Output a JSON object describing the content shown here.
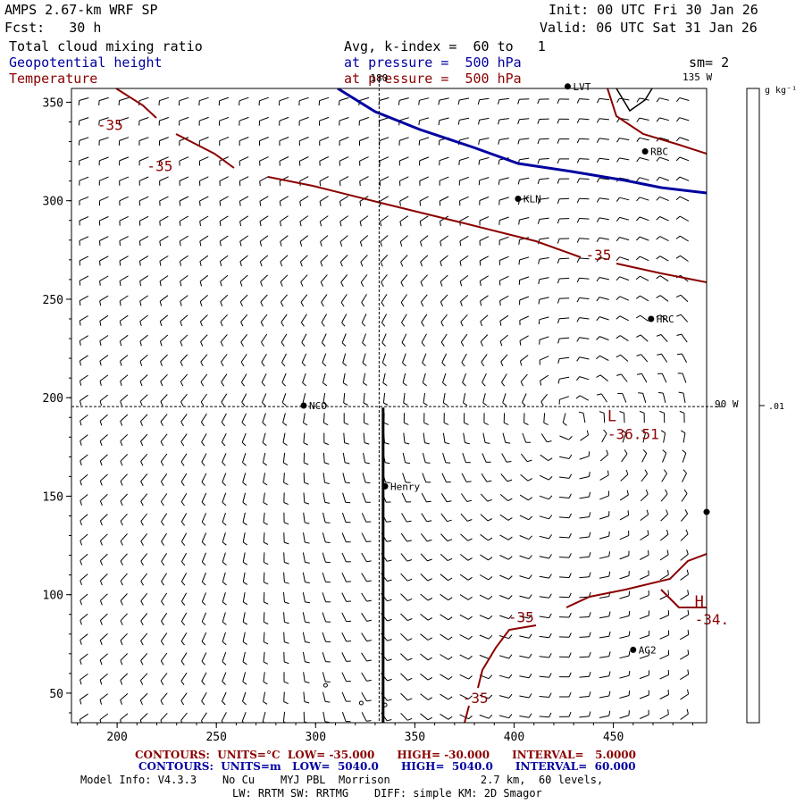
{
  "header": {
    "model": "AMPS 2.67-km WRF SP",
    "init": "Init: 00 UTC Fri 30 Jan 26",
    "fcst": "Fcst:   30 h",
    "valid": "Valid: 06 UTC Sat 31 Jan 26",
    "field1": "Total cloud mixing ratio",
    "field2": "Geopotential height",
    "field3": "Temperature",
    "avg": "Avg, k-index =  60 to   1",
    "pressure2": "at pressure =  500 hPa",
    "pressure3": "at pressure =  500 hPa",
    "sm": "sm= 2"
  },
  "colors": {
    "temperature": "#8b0000",
    "height": "#0000a0",
    "barbs": "#000000"
  },
  "map": {
    "lon_labels": {
      "top": "180",
      "top_right": "135 W",
      "right": "90 W"
    },
    "stations": [
      {
        "name": "LVT",
        "x": 427,
        "y": 358
      },
      {
        "name": "RBC",
        "x": 466,
        "y": 325
      },
      {
        "name": "KLN",
        "x": 402,
        "y": 301
      },
      {
        "name": "HRC",
        "x": 469,
        "y": 240
      },
      {
        "name": "NCO",
        "x": 294,
        "y": 196
      },
      {
        "name": "Henry",
        "x": 335,
        "y": 155
      },
      {
        "name": "AG2",
        "x": 460,
        "y": 72
      },
      {
        "name": "",
        "x": 497,
        "y": 142
      }
    ],
    "contour_labels": [
      {
        "text": "-35",
        "x": 190,
        "y": 336
      },
      {
        "text": "-35",
        "x": 215,
        "y": 315
      },
      {
        "text": "-35",
        "x": 436,
        "y": 270
      },
      {
        "text": "-35",
        "x": 397,
        "y": 86
      },
      {
        "text": "-35",
        "x": 374,
        "y": 45
      }
    ],
    "extrema": [
      {
        "symbol": "L",
        "value": "-36.51",
        "x": 447,
        "y": 188
      },
      {
        "symbol": "H",
        "value": "-34.",
        "x": 491,
        "y": 94
      }
    ],
    "section_line": {
      "x": 334,
      "y_from": 35,
      "y_to": 195
    }
  },
  "axes": {
    "x_ticks": [
      200,
      250,
      300,
      350,
      400,
      450
    ],
    "y_ticks": [
      50,
      100,
      150,
      200,
      250,
      300,
      350
    ],
    "x_range": [
      177,
      497
    ],
    "y_range": [
      35,
      357
    ]
  },
  "colorbar": {
    "unit": "g kg⁻¹",
    "label": ".01",
    "value": 0.01
  },
  "footer": {
    "red_contours": "CONTOURS:  UNITS=°C  LOW= -35.000      HIGH= -30.000      INTERVAL=   5.0000",
    "blue_contours": "CONTOURS:  UNITS=m   LOW=  5040.0      HIGH=  5040.0      INTERVAL=  60.000",
    "model_info": "Model Info: V4.3.3    No Cu    MYJ PBL  Morrison              2.7 km,  60 levels,",
    "model_info2": "LW: RRTM SW: RRTMG    DIFF: simple KM: 2D Smagor"
  }
}
